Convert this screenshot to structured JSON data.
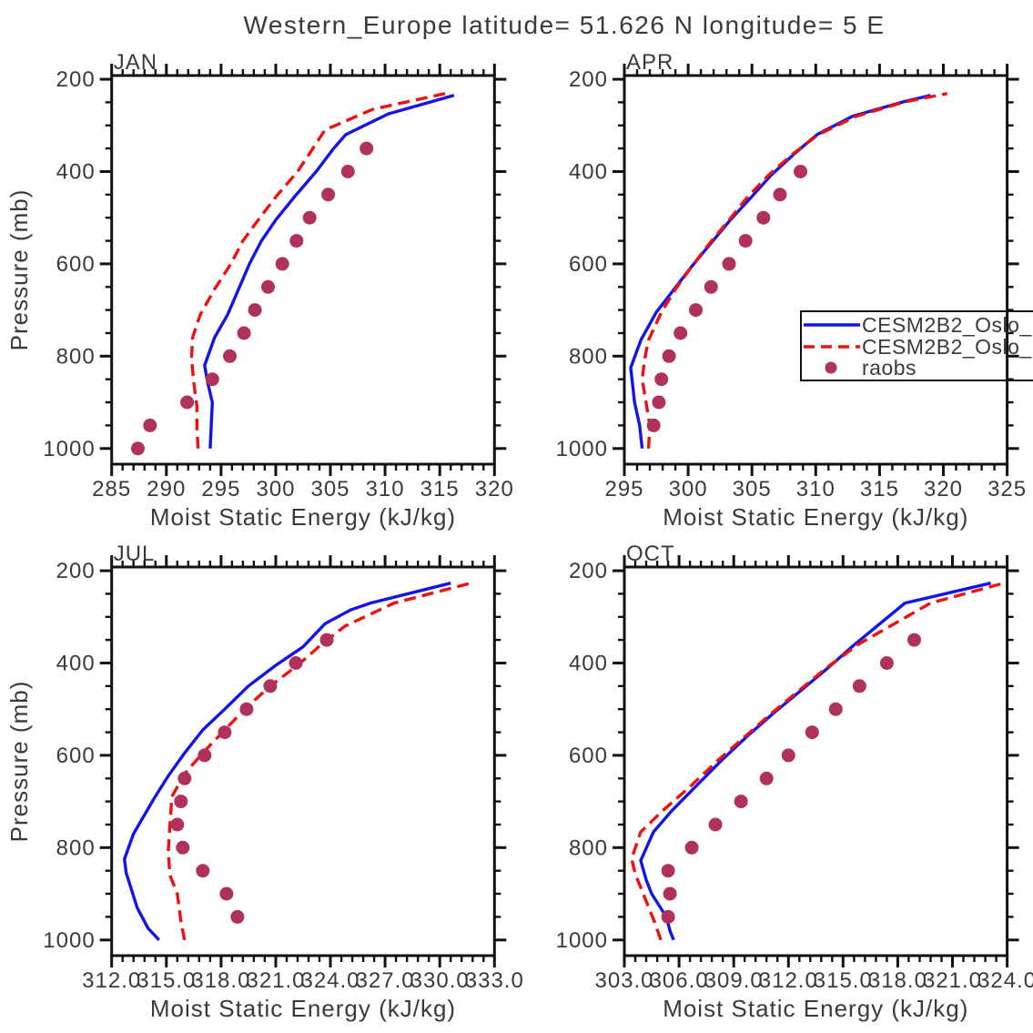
{
  "title": "Western_Europe  latitude= 51.626 N longitude= 5 E",
  "colors": {
    "model_solid": "#1414e8",
    "model_dashed": "#ee1111",
    "raobs": "#b1315d",
    "axis": "#111111",
    "text": "#3a3a3a"
  },
  "legend": {
    "entries": [
      {
        "label": "CESM2B2_Oslo_",
        "marker": "line-solid",
        "color": "model_solid"
      },
      {
        "label": "CESM2B2_Oslo_",
        "marker": "line-dashed",
        "color": "model_dashed"
      },
      {
        "label": "raobs",
        "marker": "dot",
        "color": "raobs"
      }
    ]
  },
  "chart_data": [
    {
      "type": "line",
      "title": "JAN",
      "xlabel": "Moist Static Energy (kJ/kg)",
      "ylabel": "Pressure (mb)",
      "show_ylabel": true,
      "show_legend": false,
      "xlim": [
        285,
        320
      ],
      "x_major_ticks": [
        285,
        290,
        295,
        300,
        305,
        310,
        315,
        320
      ],
      "x_tick_labels": [
        "285",
        "290",
        "295",
        "300",
        "305",
        "310",
        "315",
        "320"
      ],
      "x_minor_step": 1,
      "y_major_ticks": [
        200,
        400,
        600,
        800,
        1000
      ],
      "y_tick_labels": [
        "200",
        "400",
        "600",
        "800",
        "1000"
      ],
      "y_minor_step": 50,
      "ylim": [
        1000,
        200
      ],
      "series": [
        {
          "name": "CESM2B2_Oslo_",
          "style": "solid",
          "color": "model_solid",
          "points": [
            [
              294.0,
              1000
            ],
            [
              294.1,
              950
            ],
            [
              294.2,
              900
            ],
            [
              293.8,
              860
            ],
            [
              293.5,
              820
            ],
            [
              294.4,
              760
            ],
            [
              295.6,
              710
            ],
            [
              296.6,
              655
            ],
            [
              297.6,
              600
            ],
            [
              298.7,
              550
            ],
            [
              300.0,
              505
            ],
            [
              301.7,
              455
            ],
            [
              303.7,
              400
            ],
            [
              305.3,
              350
            ],
            [
              306.4,
              320
            ],
            [
              310.3,
              275
            ],
            [
              316.3,
              235
            ]
          ]
        },
        {
          "name": "CESM2B2_Oslo_",
          "style": "dashed",
          "color": "model_dashed",
          "points": [
            [
              292.9,
              1000
            ],
            [
              292.8,
              955
            ],
            [
              292.8,
              910
            ],
            [
              292.5,
              855
            ],
            [
              292.3,
              805
            ],
            [
              292.4,
              760
            ],
            [
              293.1,
              710
            ],
            [
              294.4,
              655
            ],
            [
              295.9,
              600
            ],
            [
              297.0,
              550
            ],
            [
              298.4,
              505
            ],
            [
              300.0,
              455
            ],
            [
              302.0,
              400
            ],
            [
              303.4,
              350
            ],
            [
              304.5,
              310
            ],
            [
              308.9,
              265
            ],
            [
              315.7,
              230
            ]
          ]
        },
        {
          "name": "raobs",
          "style": "scatter",
          "color": "raobs",
          "points": [
            [
              287.4,
              1000
            ],
            [
              288.5,
              950
            ],
            [
              291.9,
              900
            ],
            [
              294.2,
              850
            ],
            [
              295.8,
              800
            ],
            [
              297.1,
              750
            ],
            [
              298.1,
              700
            ],
            [
              299.3,
              650
            ],
            [
              300.6,
              600
            ],
            [
              301.9,
              550
            ],
            [
              303.1,
              500
            ],
            [
              304.8,
              450
            ],
            [
              306.6,
              400
            ],
            [
              308.3,
              350
            ]
          ]
        }
      ]
    },
    {
      "type": "line",
      "title": "APR",
      "xlabel": "Moist Static Energy (kJ/kg)",
      "ylabel": "Pressure (mb)",
      "show_ylabel": false,
      "show_legend": true,
      "xlim": [
        295,
        325
      ],
      "x_major_ticks": [
        295,
        300,
        305,
        310,
        315,
        320,
        325
      ],
      "x_tick_labels": [
        "295",
        "300",
        "305",
        "310",
        "315",
        "320",
        "325"
      ],
      "x_minor_step": 1,
      "y_major_ticks": [
        200,
        400,
        600,
        800,
        1000
      ],
      "y_tick_labels": [
        "200",
        "400",
        "600",
        "800",
        "1000"
      ],
      "y_minor_step": 50,
      "ylim": [
        1000,
        200
      ],
      "series": [
        {
          "name": "CESM2B2_Oslo_",
          "style": "solid",
          "color": "model_solid",
          "points": [
            [
              296.4,
              1000
            ],
            [
              296.2,
              950
            ],
            [
              295.8,
              900
            ],
            [
              295.6,
              850
            ],
            [
              295.5,
              825
            ],
            [
              296.3,
              765
            ],
            [
              297.5,
              705
            ],
            [
              298.9,
              655
            ],
            [
              300.3,
              605
            ],
            [
              301.8,
              555
            ],
            [
              303.3,
              505
            ],
            [
              304.9,
              457
            ],
            [
              306.5,
              408
            ],
            [
              308.3,
              362
            ],
            [
              310.1,
              320
            ],
            [
              312.9,
              280
            ],
            [
              317.0,
              248
            ],
            [
              319.0,
              235
            ]
          ]
        },
        {
          "name": "CESM2B2_Oslo_",
          "style": "dashed",
          "color": "model_dashed",
          "points": [
            [
              296.9,
              1000
            ],
            [
              297.0,
              950
            ],
            [
              296.7,
              900
            ],
            [
              296.4,
              850
            ],
            [
              296.6,
              805
            ],
            [
              296.9,
              765
            ],
            [
              297.9,
              705
            ],
            [
              299.0,
              655
            ],
            [
              300.3,
              605
            ],
            [
              301.7,
              555
            ],
            [
              303.2,
              505
            ],
            [
              304.6,
              457
            ],
            [
              306.3,
              408
            ],
            [
              308.2,
              362
            ],
            [
              310.2,
              320
            ],
            [
              313.2,
              280
            ],
            [
              317.0,
              249
            ],
            [
              320.3,
              231
            ]
          ]
        },
        {
          "name": "raobs",
          "style": "scatter",
          "color": "raobs",
          "points": [
            [
              297.3,
              950
            ],
            [
              297.7,
              900
            ],
            [
              297.9,
              850
            ],
            [
              298.5,
              800
            ],
            [
              299.4,
              750
            ],
            [
              300.6,
              700
            ],
            [
              301.8,
              650
            ],
            [
              303.2,
              600
            ],
            [
              304.5,
              550
            ],
            [
              305.9,
              500
            ],
            [
              307.2,
              450
            ],
            [
              308.8,
              400
            ]
          ]
        }
      ]
    },
    {
      "type": "line",
      "title": "JUL",
      "xlabel": "Moist Static Energy (kJ/kg)",
      "ylabel": "Pressure (mb)",
      "show_ylabel": true,
      "show_legend": false,
      "xlim": [
        312,
        333
      ],
      "x_major_ticks": [
        312,
        315,
        318,
        321,
        324,
        327,
        330,
        333
      ],
      "x_tick_labels": [
        "312.0",
        "315.0",
        "318.0",
        "321.0",
        "324.0",
        "327.0",
        "330.0",
        "333.0"
      ],
      "x_minor_step": 0.6,
      "y_major_ticks": [
        200,
        400,
        600,
        800,
        1000
      ],
      "y_tick_labels": [
        "200",
        "400",
        "600",
        "800",
        "1000"
      ],
      "y_minor_step": 50,
      "ylim": [
        1000,
        200
      ],
      "series": [
        {
          "name": "CESM2B2_Oslo_",
          "style": "solid",
          "color": "model_solid",
          "points": [
            [
              314.6,
              1000
            ],
            [
              314.0,
              975
            ],
            [
              313.4,
              930
            ],
            [
              313.0,
              880
            ],
            [
              312.8,
              855
            ],
            [
              312.7,
              825
            ],
            [
              313.2,
              770
            ],
            [
              314.3,
              695
            ],
            [
              315.1,
              645
            ],
            [
              316.0,
              595
            ],
            [
              317.0,
              545
            ],
            [
              318.2,
              500
            ],
            [
              319.5,
              450
            ],
            [
              321.0,
              405
            ],
            [
              322.5,
              365
            ],
            [
              323.7,
              315
            ],
            [
              325.1,
              285
            ],
            [
              326.2,
              270
            ],
            [
              330.6,
              227
            ]
          ]
        },
        {
          "name": "CESM2B2_Oslo_",
          "style": "dashed",
          "color": "model_dashed",
          "points": [
            [
              316.0,
              1000
            ],
            [
              315.8,
              960
            ],
            [
              315.6,
              900
            ],
            [
              315.2,
              860
            ],
            [
              315.1,
              810
            ],
            [
              315.3,
              690
            ],
            [
              316.0,
              640
            ],
            [
              317.0,
              595
            ],
            [
              318.2,
              545
            ],
            [
              319.3,
              500
            ],
            [
              320.7,
              450
            ],
            [
              322.2,
              405
            ],
            [
              323.5,
              360
            ],
            [
              324.8,
              320
            ],
            [
              327.5,
              270
            ],
            [
              331.9,
              225
            ]
          ]
        },
        {
          "name": "raobs",
          "style": "scatter",
          "color": "raobs",
          "points": [
            [
              318.9,
              950
            ],
            [
              318.3,
              900
            ],
            [
              317.0,
              850
            ],
            [
              315.9,
              800
            ],
            [
              315.6,
              750
            ],
            [
              315.8,
              700
            ],
            [
              316.0,
              650
            ],
            [
              317.1,
              600
            ],
            [
              318.2,
              550
            ],
            [
              319.4,
              500
            ],
            [
              320.7,
              450
            ],
            [
              322.1,
              400
            ],
            [
              323.8,
              350
            ]
          ]
        }
      ]
    },
    {
      "type": "line",
      "title": "OCT",
      "xlabel": "Moist Static Energy (kJ/kg)",
      "ylabel": "Pressure (mb)",
      "show_ylabel": false,
      "show_legend": false,
      "xlim": [
        303,
        324
      ],
      "x_major_ticks": [
        303,
        306,
        309,
        312,
        315,
        318,
        321,
        324
      ],
      "x_tick_labels": [
        "303.0",
        "306.0",
        "309.0",
        "312.0",
        "315.0",
        "318.0",
        "321.0",
        "324.0"
      ],
      "x_minor_step": 0.6,
      "y_major_ticks": [
        200,
        400,
        600,
        800,
        1000
      ],
      "y_tick_labels": [
        "200",
        "400",
        "600",
        "800",
        "1000"
      ],
      "y_minor_step": 50,
      "ylim": [
        1000,
        200
      ],
      "series": [
        {
          "name": "CESM2B2_Oslo_",
          "style": "solid",
          "color": "model_solid",
          "points": [
            [
              305.7,
              1000
            ],
            [
              305.5,
              980
            ],
            [
              305.3,
              950
            ],
            [
              304.5,
              900
            ],
            [
              304.2,
              870
            ],
            [
              303.9,
              828
            ],
            [
              304.6,
              766
            ],
            [
              305.6,
              720
            ],
            [
              306.9,
              668
            ],
            [
              308.3,
              612
            ],
            [
              309.7,
              560
            ],
            [
              311.2,
              508
            ],
            [
              312.7,
              459
            ],
            [
              314.1,
              413
            ],
            [
              315.6,
              361
            ],
            [
              318.4,
              270
            ],
            [
              323.1,
              227
            ]
          ]
        },
        {
          "name": "CESM2B2_Oslo_",
          "style": "dashed",
          "color": "model_dashed",
          "points": [
            [
              305.0,
              1000
            ],
            [
              304.7,
              965
            ],
            [
              304.2,
              916
            ],
            [
              303.6,
              857
            ],
            [
              303.4,
              824
            ],
            [
              303.9,
              766
            ],
            [
              305.1,
              720
            ],
            [
              306.6,
              668
            ],
            [
              308.1,
              612
            ],
            [
              309.6,
              560
            ],
            [
              311.1,
              508
            ],
            [
              312.6,
              459
            ],
            [
              314.1,
              410
            ],
            [
              315.9,
              358
            ],
            [
              319.8,
              270
            ],
            [
              324.0,
              225
            ]
          ]
        },
        {
          "name": "raobs",
          "style": "scatter",
          "color": "raobs",
          "points": [
            [
              305.4,
              950
            ],
            [
              305.5,
              900
            ],
            [
              305.4,
              850
            ],
            [
              306.7,
              800
            ],
            [
              308.0,
              750
            ],
            [
              309.4,
              700
            ],
            [
              310.8,
              650
            ],
            [
              312.0,
              600
            ],
            [
              313.3,
              550
            ],
            [
              314.6,
              500
            ],
            [
              315.9,
              450
            ],
            [
              317.4,
              400
            ],
            [
              318.9,
              350
            ]
          ]
        }
      ]
    }
  ]
}
